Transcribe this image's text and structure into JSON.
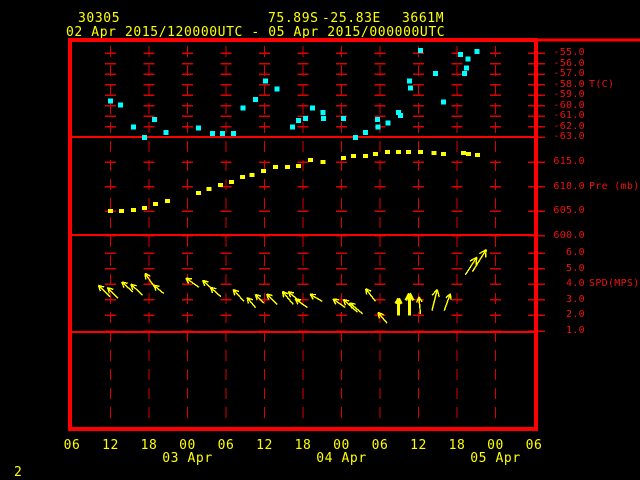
{
  "header": {
    "station_id": "30305",
    "latitude": "75.89S",
    "longitude": "-25.83E",
    "elevation": "3661M",
    "time_range": "02 Apr 2015/120000UTC - 05 Apr 2015/000000UTC"
  },
  "footer": {
    "page_number": "2"
  },
  "colors": {
    "background": "#000000",
    "frame": "#ff0000",
    "grid": "#dd0000",
    "axis_text": "#ee1111",
    "header_text": "#ffff00",
    "temperature_series": "#00ffff",
    "pressure_series": "#ffff00",
    "wind_series": "#ffff00"
  },
  "x_axis": {
    "start": "02 Apr 2015 06:00 UTC",
    "end": "05 Apr 2015 06:00 UTC",
    "hours_span": 72,
    "hour_labels": [
      "06",
      "12",
      "18",
      "00",
      "06",
      "12",
      "18",
      "00",
      "06",
      "12",
      "18",
      "00",
      "06"
    ],
    "date_labels": [
      {
        "label": "03 Apr",
        "tick_index": 3
      },
      {
        "label": "04 Apr",
        "tick_index": 7
      },
      {
        "label": "05 Apr",
        "tick_index": 11
      }
    ]
  },
  "panels": [
    {
      "id": "temperature",
      "unit_label": "T(C)",
      "unit_anchor_tick": -58,
      "ticks": [
        -55,
        -56,
        -57,
        -58,
        -59,
        -60,
        -61,
        -62,
        -63
      ],
      "tick_labels": [
        "-55.0",
        "-56.0",
        "-57.0",
        "-58.0",
        "-59.0",
        "-60.0",
        "-61.0",
        "-62.0",
        "-63.0"
      ]
    },
    {
      "id": "pressure",
      "unit_label": "Pre (mb)",
      "unit_anchor_tick": 610,
      "ticks": [
        615,
        610,
        605,
        600
      ],
      "tick_labels": [
        "615.0",
        "610.0",
        "605.0",
        "600.0"
      ]
    },
    {
      "id": "wind_speed",
      "unit_label": "SPD(MPS)",
      "unit_anchor_tick": 4,
      "ticks": [
        6,
        5,
        4,
        3,
        2,
        1
      ],
      "tick_labels": [
        "6.0",
        "5.0",
        "4.0",
        "3.0",
        "2.0",
        "1.0"
      ]
    }
  ],
  "chart_data": [
    {
      "type": "scatter",
      "name": "temperature_C",
      "ylabel": "T(C)",
      "yrange": [
        -63,
        -55
      ],
      "x_hours_from_start": [
        5.9,
        7.5,
        9.5,
        11.2,
        12.8,
        14.6,
        19.6,
        21.8,
        23.4,
        25.1,
        26.6,
        28.5,
        30.1,
        31.9,
        34.3,
        35.2,
        36.3,
        37.4,
        39.0,
        39.1,
        42.2,
        44.1,
        45.7,
        47.5,
        47.6,
        49.2,
        50.8,
        51.1,
        52.5,
        52.7,
        54.2,
        56.6,
        57.8,
        60.5,
        61.1,
        61.4,
        61.6,
        63.0
      ],
      "values": [
        -59.5,
        -59.9,
        -62.0,
        -63.0,
        -61.3,
        -62.5,
        -62.1,
        -62.6,
        -62.6,
        -62.6,
        -60.2,
        -59.4,
        -57.6,
        -58.4,
        -62.0,
        -61.4,
        -61.2,
        -60.2,
        -60.6,
        -61.2,
        -61.2,
        -63.0,
        -62.5,
        -61.3,
        -62.0,
        -61.6,
        -60.6,
        -60.9,
        -57.6,
        -58.3,
        -54.7,
        -56.9,
        -59.6,
        -55.1,
        -56.9,
        -56.4,
        -55.5,
        -54.8
      ]
    },
    {
      "type": "scatter",
      "name": "pressure_mb",
      "ylabel": "Pre (mb)",
      "yrange": [
        600,
        615
      ],
      "x_hours_from_start": [
        5.9,
        7.6,
        9.5,
        11.2,
        12.9,
        14.8,
        19.6,
        21.3,
        23.1,
        24.8,
        26.5,
        28.0,
        29.8,
        31.6,
        33.5,
        35.2,
        37.1,
        39.0,
        42.2,
        43.8,
        45.7,
        47.2,
        49.1,
        50.8,
        52.4,
        54.2,
        56.3,
        57.8,
        60.9,
        61.7,
        63.1
      ],
      "values": [
        605.1,
        605.1,
        605.3,
        605.7,
        606.5,
        607.1,
        608.7,
        609.5,
        610.3,
        610.9,
        612.0,
        612.4,
        613.2,
        614.0,
        614.0,
        614.2,
        615.4,
        615.0,
        615.8,
        616.2,
        616.2,
        616.6,
        617.0,
        617.0,
        617.0,
        617.0,
        616.8,
        616.6,
        616.8,
        616.6,
        616.4
      ]
    },
    {
      "type": "vector",
      "name": "wind",
      "ylabel": "SPD(MPS)",
      "yrange": [
        1,
        6
      ],
      "arrows": [
        {
          "h": 5.9,
          "spd": 3.2,
          "dir_deg": 315,
          "len": 16,
          "bold": false
        },
        {
          "h": 7.2,
          "spd": 3.1,
          "dir_deg": 315,
          "len": 15,
          "bold": false
        },
        {
          "h": 9.5,
          "spd": 3.5,
          "dir_deg": 312,
          "len": 15,
          "bold": false
        },
        {
          "h": 11.0,
          "spd": 3.3,
          "dir_deg": 313,
          "len": 16,
          "bold": false
        },
        {
          "h": 12.9,
          "spd": 3.8,
          "dir_deg": 325,
          "len": 17,
          "bold": false
        },
        {
          "h": 14.3,
          "spd": 3.4,
          "dir_deg": 310,
          "len": 13,
          "bold": false
        },
        {
          "h": 19.8,
          "spd": 3.8,
          "dir_deg": 305,
          "len": 16,
          "bold": false
        },
        {
          "h": 22.1,
          "spd": 3.6,
          "dir_deg": 312,
          "len": 15,
          "bold": false
        },
        {
          "h": 23.2,
          "spd": 3.2,
          "dir_deg": 312,
          "len": 14,
          "bold": false
        },
        {
          "h": 26.8,
          "spd": 2.9,
          "dir_deg": 318,
          "len": 16,
          "bold": false
        },
        {
          "h": 28.6,
          "spd": 2.5,
          "dir_deg": 320,
          "len": 13,
          "bold": false
        },
        {
          "h": 29.9,
          "spd": 2.8,
          "dir_deg": 315,
          "len": 12,
          "bold": false
        },
        {
          "h": 32.0,
          "spd": 2.7,
          "dir_deg": 315,
          "len": 15,
          "bold": false
        },
        {
          "h": 34.5,
          "spd": 2.7,
          "dir_deg": 320,
          "len": 17,
          "bold": false
        },
        {
          "h": 35.5,
          "spd": 2.9,
          "dir_deg": 310,
          "len": 15,
          "bold": false
        },
        {
          "h": 36.7,
          "spd": 2.5,
          "dir_deg": 305,
          "len": 15,
          "bold": false
        },
        {
          "h": 39.0,
          "spd": 2.9,
          "dir_deg": 300,
          "len": 14,
          "bold": false
        },
        {
          "h": 42.6,
          "spd": 2.5,
          "dir_deg": 305,
          "len": 15,
          "bold": false
        },
        {
          "h": 44.5,
          "spd": 2.2,
          "dir_deg": 312,
          "len": 19,
          "bold": false
        },
        {
          "h": 45.3,
          "spd": 2.1,
          "dir_deg": 310,
          "len": 17,
          "bold": false
        },
        {
          "h": 47.3,
          "spd": 2.9,
          "dir_deg": 322,
          "len": 16,
          "bold": false
        },
        {
          "h": 49.1,
          "spd": 1.5,
          "dir_deg": 320,
          "len": 14,
          "bold": false
        },
        {
          "h": 50.9,
          "spd": 2.0,
          "dir_deg": 0,
          "len": 17,
          "bold": true
        },
        {
          "h": 52.6,
          "spd": 2.0,
          "dir_deg": 0,
          "len": 22,
          "bold": true
        },
        {
          "h": 54.3,
          "spd": 2.1,
          "dir_deg": 355,
          "len": 17,
          "bold": false
        },
        {
          "h": 56.1,
          "spd": 2.3,
          "dir_deg": 14,
          "len": 22,
          "bold": false
        },
        {
          "h": 58.0,
          "spd": 2.3,
          "dir_deg": 20,
          "len": 18,
          "bold": false
        },
        {
          "h": 61.3,
          "spd": 4.6,
          "dir_deg": 33,
          "len": 21,
          "bold": false
        },
        {
          "h": 62.4,
          "spd": 4.8,
          "dir_deg": 32,
          "len": 26,
          "bold": false
        }
      ]
    }
  ]
}
